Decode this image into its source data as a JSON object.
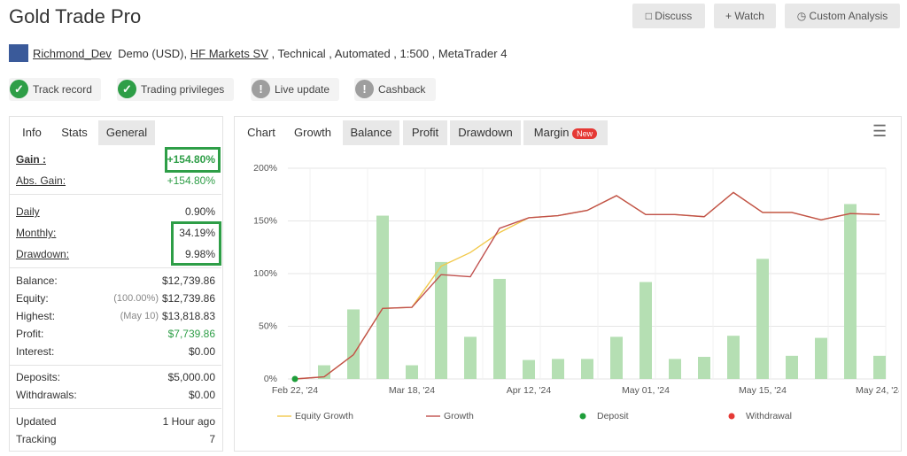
{
  "header": {
    "title": "Gold Trade Pro",
    "buttons": [
      "Discuss",
      "Watch",
      "Custom Analysis"
    ]
  },
  "account": {
    "user": "Richmond_Dev",
    "type": "Demo (USD),",
    "broker": "HF Markets SV",
    "details": ", Technical , Automated , 1:500 , MetaTrader 4"
  },
  "badges": [
    "Track record",
    "Trading privileges",
    "Live update",
    "Cashback"
  ],
  "left_tabs": [
    "Info",
    "Stats",
    "General"
  ],
  "stats": [
    [
      {
        "label": "Gain :",
        "value": "+154.80%",
        "color": "#2e9e47"
      },
      {
        "label": "Abs. Gain:",
        "value": "+154.80%",
        "color": "#2e9e47"
      }
    ],
    [
      {
        "label": "Daily",
        "value": "0.90%"
      },
      {
        "label": "Monthly:",
        "value": "34.19%"
      },
      {
        "label": "Drawdown:",
        "value": "9.98%"
      }
    ],
    [
      {
        "label": "Balance:",
        "value": "$12,739.86"
      },
      {
        "label": "Equity:",
        "note": "(100.00%)",
        "value": "$12,739.86"
      },
      {
        "label": "Highest:",
        "note": "(May 10)",
        "value": "$13,818.83"
      },
      {
        "label": "Profit:",
        "value": "$7,739.86",
        "color": "#2e9e47"
      },
      {
        "label": "Interest:",
        "value": "$0.00"
      }
    ],
    [
      {
        "label": "Deposits:",
        "value": "$5,000.00"
      },
      {
        "label": "Withdrawals:",
        "value": "$0.00"
      }
    ],
    [
      {
        "label": "Updated",
        "value": "1 Hour ago"
      },
      {
        "label": "Tracking",
        "value": "7"
      }
    ]
  ],
  "chart_tabs": [
    "Chart",
    "Growth",
    "Balance",
    "Profit",
    "Drawdown",
    "Margin"
  ],
  "new_badge": "New",
  "chart_data": {
    "type": "combo",
    "categories": [
      "Feb 22, '24",
      null,
      null,
      null,
      "Mar 18, '24",
      null,
      null,
      null,
      "Apr 12, '24",
      null,
      null,
      null,
      "May 01, '24",
      null,
      null,
      null,
      "May 15, '24",
      null,
      null,
      null,
      "May 24, '24"
    ],
    "ylim": [
      0,
      200
    ],
    "yticks": [
      {
        "value": 0,
        "label": "0%"
      },
      {
        "value": 50,
        "label": "50%"
      },
      {
        "value": 100,
        "label": "100%"
      },
      {
        "value": 150,
        "label": "150%"
      },
      {
        "value": 200,
        "label": "200%"
      }
    ],
    "grid": true,
    "series": [
      {
        "type": "bar",
        "color": "#b5dfb3",
        "values": [
          null,
          13,
          66,
          155,
          13,
          111,
          40,
          95,
          18,
          19,
          19,
          40,
          92,
          19,
          21,
          41,
          114,
          22,
          39,
          166,
          22
        ]
      },
      {
        "type": "line",
        "name": "Equity Growth",
        "color": "#f2c94c",
        "values": [
          0,
          2,
          23,
          67,
          68,
          107,
          120,
          139,
          153,
          155,
          160,
          174,
          156,
          156,
          154,
          177,
          158,
          158,
          151,
          157,
          156
        ]
      },
      {
        "type": "line",
        "name": "Growth",
        "color": "#c0504d",
        "values": [
          0,
          2,
          23,
          67,
          68,
          99,
          97,
          143,
          153,
          155,
          160,
          174,
          156,
          156,
          154,
          177,
          158,
          158,
          151,
          157,
          156
        ]
      },
      {
        "type": "scatter",
        "name": "Deposit",
        "color": "#1e9e3a",
        "values": [
          0,
          null,
          null,
          null,
          null,
          null,
          null,
          null,
          null,
          null,
          null,
          null,
          null,
          null,
          null,
          null,
          null,
          null,
          null,
          null,
          null
        ]
      },
      {
        "type": "scatter",
        "name": "Withdrawal",
        "color": "#e53935",
        "values": [
          null,
          null,
          null,
          null,
          null,
          null,
          null,
          null,
          null,
          null,
          null,
          null,
          null,
          null,
          null,
          null,
          null,
          null,
          null,
          null,
          null
        ]
      }
    ]
  }
}
